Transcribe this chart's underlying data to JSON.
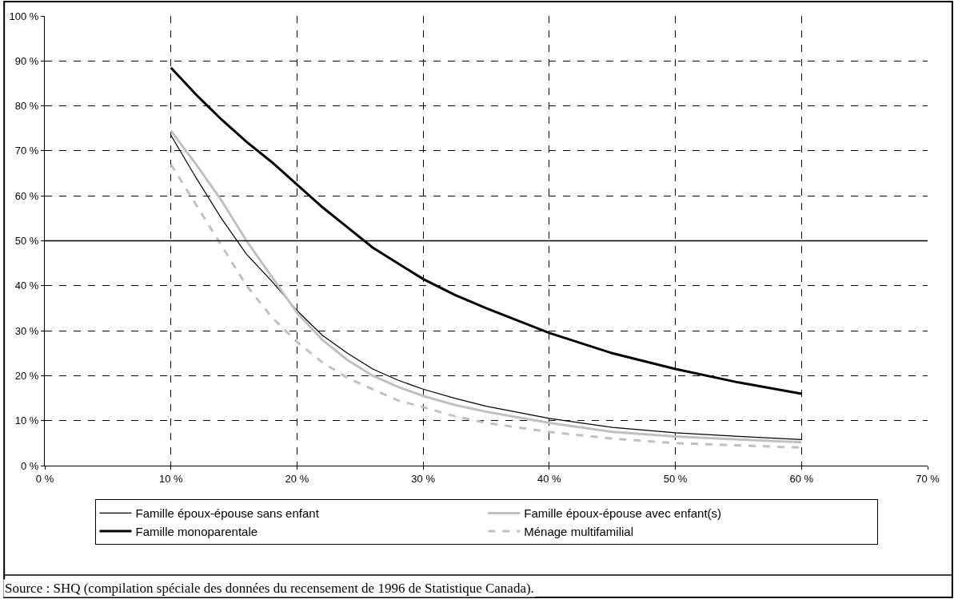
{
  "chart_data": {
    "type": "line",
    "xlim": [
      0,
      70
    ],
    "xticks": [
      {
        "value": 0,
        "label": "0 %"
      },
      {
        "value": 10,
        "label": "10 %"
      },
      {
        "value": 20,
        "label": "20 %"
      },
      {
        "value": 30,
        "label": "30 %"
      },
      {
        "value": 40,
        "label": "40 %"
      },
      {
        "value": 50,
        "label": "50 %"
      },
      {
        "value": 60,
        "label": "60 %"
      },
      {
        "value": 70,
        "label": "70 %"
      }
    ],
    "ylim": [
      0,
      100
    ],
    "yticks": [
      {
        "value": 0,
        "label": "0 %"
      },
      {
        "value": 10,
        "label": "10 %"
      },
      {
        "value": 20,
        "label": "20 %"
      },
      {
        "value": 30,
        "label": "30 %"
      },
      {
        "value": 40,
        "label": "40 %"
      },
      {
        "value": 50,
        "label": "50 %"
      },
      {
        "value": 60,
        "label": "60 %"
      },
      {
        "value": 70,
        "label": "70 %"
      },
      {
        "value": 80,
        "label": "80 %"
      },
      {
        "value": 90,
        "label": "90 %"
      },
      {
        "value": 100,
        "label": "100 %"
      }
    ],
    "grid": true,
    "legend": "bottom",
    "x": [
      10,
      12,
      14,
      16,
      18,
      20,
      22,
      24,
      26,
      28,
      30,
      32.5,
      35,
      40,
      45,
      50,
      55,
      60
    ],
    "series": [
      {
        "name": "Famille époux-épouse sans enfant",
        "color": "#000000",
        "line_style": "solid",
        "values": [
          73.5,
          64,
          55,
          47,
          41,
          34.5,
          29,
          25,
          21.5,
          19,
          17,
          15,
          13.2,
          10.5,
          8.5,
          7.3,
          6.5,
          5.8
        ]
      },
      {
        "name": "Famille époux-épouse avec enfant(s)",
        "color": "#c0c0c0",
        "line_style": "solid",
        "values": [
          74.5,
          67,
          59,
          50,
          42,
          34,
          28,
          23.5,
          20,
          17.5,
          15.5,
          13.5,
          12,
          9.5,
          7.5,
          6.5,
          5.8,
          5.2
        ]
      },
      {
        "name": "Famille monoparentale",
        "color": "#000000",
        "line_style": "solid",
        "values": [
          88.5,
          82.5,
          77,
          72,
          67.5,
          62.5,
          57.5,
          53,
          48.5,
          45,
          41.5,
          38,
          35,
          29.5,
          25,
          21.5,
          18.5,
          16
        ]
      },
      {
        "name": "Ménage multifamilial",
        "color": "#c0c0c0",
        "line_style": "dashed",
        "values": [
          67,
          58,
          49,
          40,
          33,
          27.5,
          23,
          19.5,
          17,
          14.5,
          13,
          11,
          9.5,
          7.5,
          6,
          5,
          4.5,
          4
        ]
      }
    ],
    "ref_lines": [
      {
        "axis": "y",
        "value": 50,
        "label": null,
        "color": "#000000",
        "line_style": "solid"
      }
    ],
    "annotations": [
      "Source : SHQ (compilation spéciale des données du recensement de 1996 de Statistique Canada)."
    ]
  }
}
